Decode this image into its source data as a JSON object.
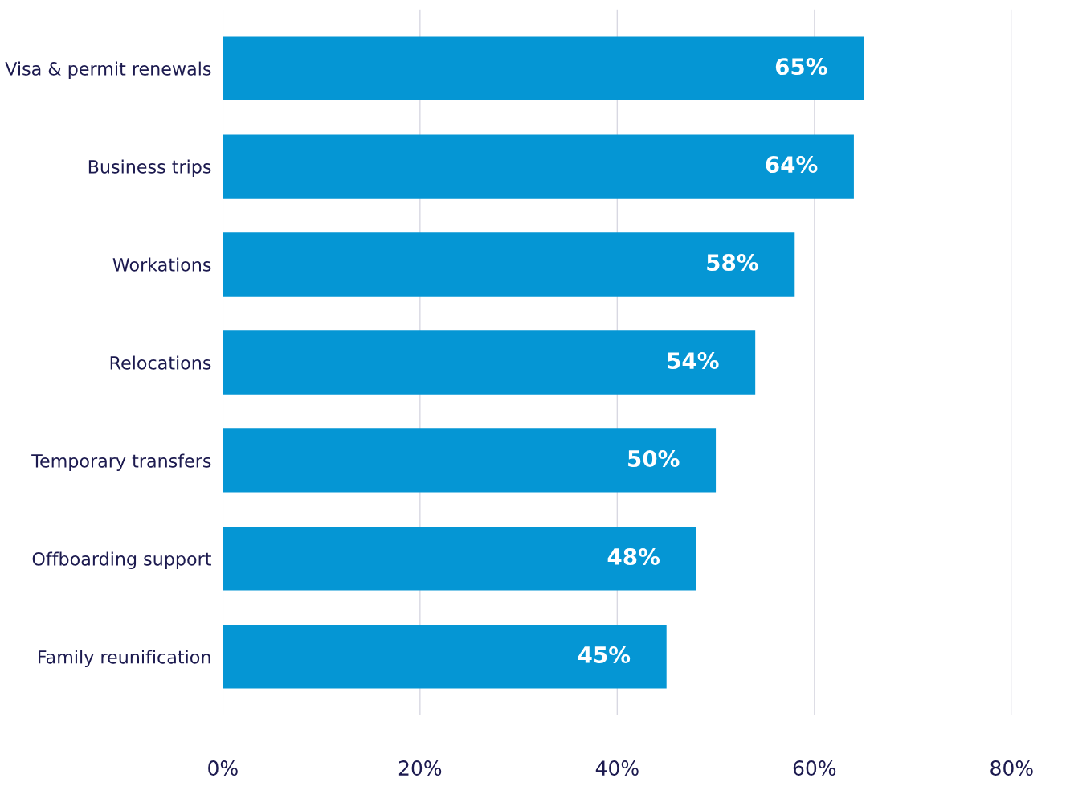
{
  "chart_data": {
    "type": "bar",
    "orientation": "horizontal",
    "categories": [
      "Visa & permit renewals",
      "Business trips",
      "Workations",
      "Relocations",
      "Temporary transfers",
      "Offboarding support",
      "Family reunification"
    ],
    "values": [
      65,
      64,
      58,
      54,
      50,
      48,
      45
    ],
    "value_labels": [
      "65%",
      "64%",
      "58%",
      "54%",
      "50%",
      "48%",
      "45%"
    ],
    "color": "#0596d4",
    "xlim": [
      0,
      80
    ],
    "xticks": [
      {
        "value": 0,
        "label": "0%"
      },
      {
        "value": 20,
        "label": "20%"
      },
      {
        "value": 40,
        "label": "40%"
      },
      {
        "value": 60,
        "label": "60%"
      },
      {
        "value": 80,
        "label": "80%"
      }
    ],
    "grid": "x",
    "legend": false
  }
}
